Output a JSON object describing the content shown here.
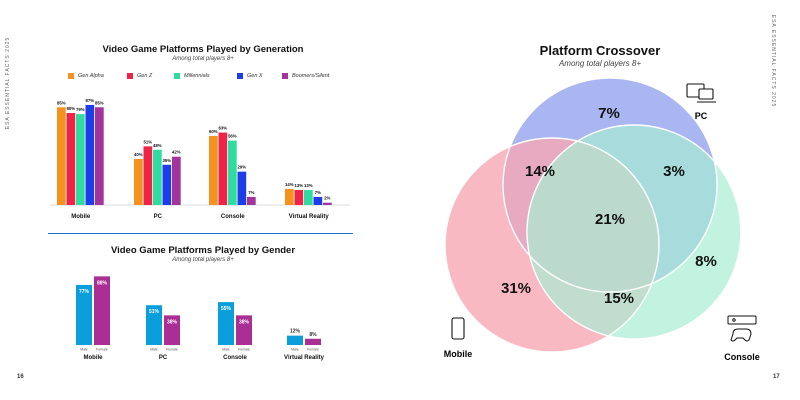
{
  "side_left": "ESA ESSENTIAL FACTS 2025",
  "side_right": "ESA ESSENTIAL FACTS 2025",
  "page_left": "16",
  "page_right": "17",
  "colors": {
    "gen_alpha": "#f5921f",
    "gen_z": "#ee2346",
    "millennials": "#2fdc9f",
    "gen_x": "#1c3de8",
    "boomers": "#a3339d",
    "male": "#0a9edb",
    "female": "#aa2f95",
    "venn_pc": "#9aa9ef",
    "venn_mobile": "#f7a8b4",
    "venn_console": "#a8ecd3",
    "divider": "#1f6fd6"
  },
  "chart_data": [
    {
      "type": "bar",
      "title": "Video Game Platforms Played by Generation",
      "subtitle": "Among total players 8+",
      "categories": [
        "Mobile",
        "PC",
        "Console",
        "Virtual Reality"
      ],
      "series": [
        {
          "name": "Gen Alpha",
          "values": [
            85,
            40,
            60,
            14
          ]
        },
        {
          "name": "Gen Z",
          "values": [
            80,
            51,
            63,
            13
          ]
        },
        {
          "name": "Millennials",
          "values": [
            79,
            48,
            56,
            13
          ]
        },
        {
          "name": "Gen X",
          "values": [
            87,
            35,
            29,
            7
          ]
        },
        {
          "name": "Boomers/Silent",
          "values": [
            85,
            42,
            7,
            2
          ]
        }
      ],
      "ylim": [
        0,
        100
      ]
    },
    {
      "type": "bar",
      "title": "Video Game Platforms Played by Gender",
      "subtitle": "Among total players 8+",
      "categories": [
        "Mobile",
        "PC",
        "Console",
        "Virtual Reality"
      ],
      "sublabels": [
        "Male",
        "Female"
      ],
      "series": [
        {
          "name": "Male",
          "values": [
            77,
            51,
            55,
            12
          ]
        },
        {
          "name": "Female",
          "values": [
            88,
            38,
            38,
            8
          ]
        }
      ],
      "ylim": [
        0,
        100
      ]
    },
    {
      "type": "venn",
      "title": "Platform Crossover",
      "subtitle": "Among total players 8+",
      "sets": [
        "PC",
        "Mobile",
        "Console"
      ],
      "regions": {
        "pc_only": "7%",
        "mobile_only": "31%",
        "console_only": "8%",
        "pc_mobile": "14%",
        "pc_console": "3%",
        "mobile_console": "15%",
        "all_three": "21%"
      }
    }
  ]
}
